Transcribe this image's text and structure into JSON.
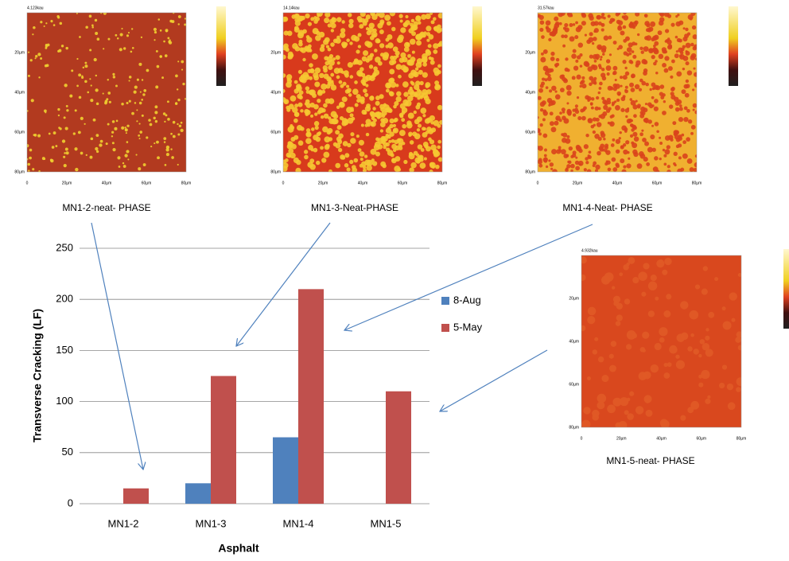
{
  "chart_data": {
    "type": "bar",
    "x_label": "Asphalt",
    "y_label": "Transverse Cracking (LF)",
    "categories": [
      "MN1-2",
      "MN1-3",
      "MN1-4",
      "MN1-5"
    ],
    "series": [
      {
        "name": "8-Aug",
        "color": "#4f81bd",
        "values": [
          null,
          20,
          65,
          null
        ]
      },
      {
        "name": "5-May",
        "color": "#c0504d",
        "values": [
          15,
          125,
          210,
          110
        ]
      }
    ],
    "ylim": [
      0,
      250
    ],
    "yticks": [
      0,
      50,
      100,
      150,
      200,
      250
    ],
    "grid": true,
    "legend": "right"
  },
  "afm_images": [
    {
      "scale": "4.123kau",
      "caption": "MN1-2-neat- PHASE"
    },
    {
      "scale": "14.14kau",
      "caption": "MN1-3-Neat-PHASE"
    },
    {
      "scale": "31.57kau",
      "caption": "MN1-4-Neat- PHASE"
    },
    {
      "scale": "4.932kau",
      "caption": "MN1-5-neat- PHASE"
    }
  ],
  "afm_axis": {
    "xticks": [
      "0",
      "20µm",
      "40µm",
      "60µm",
      "80µm"
    ],
    "yticks": [
      "20µm",
      "40µm",
      "60µm",
      "80µm"
    ]
  }
}
